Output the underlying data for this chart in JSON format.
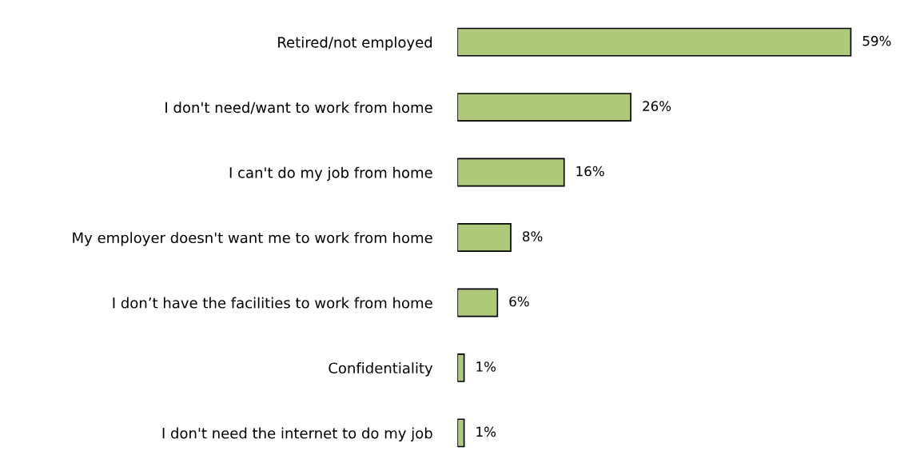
{
  "chart_data": {
    "type": "bar",
    "orientation": "horizontal",
    "categories": [
      "Retired/not employed",
      "I don't need/want to work from home",
      "I can't do my job from home",
      "My employer doesn't want me to work from home",
      "I don’t have the facilities to work from home",
      "Confidentiality",
      "I don't need the internet to do my job"
    ],
    "values": [
      59,
      26,
      16,
      8,
      6,
      1,
      1
    ],
    "value_labels": [
      "59%",
      "26%",
      "16%",
      "8%",
      "6%",
      "1%",
      "1%"
    ],
    "color": "#afc97a",
    "tick_labels": "y",
    "grid": false,
    "legend": false
  }
}
